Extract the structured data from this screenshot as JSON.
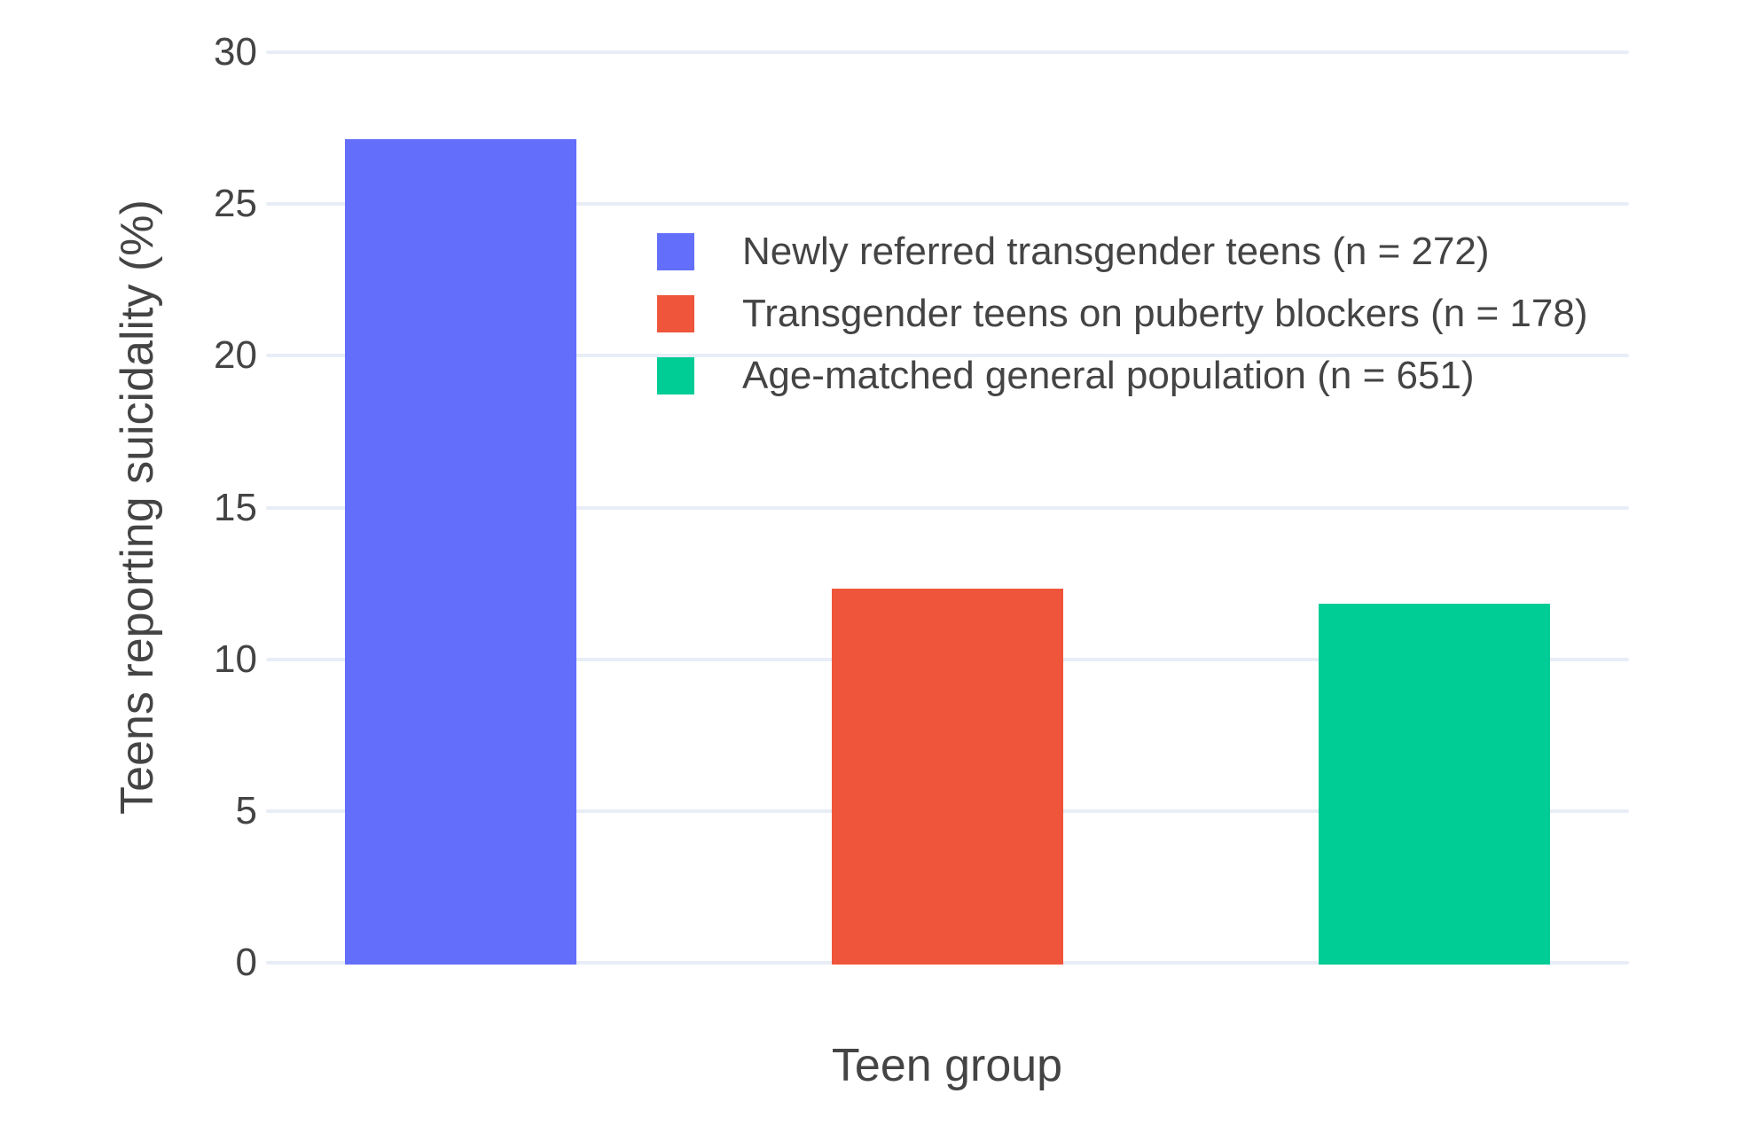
{
  "chart_data": {
    "type": "bar",
    "categories": [
      "Newly referred transgender teens (n = 272)",
      "Transgender teens on puberty blockers (n = 178)",
      "Age-matched general population (n = 651)"
    ],
    "values": [
      27.2,
      12.4,
      11.9
    ],
    "colors": [
      "#636EFA",
      "#EF553B",
      "#00CC96"
    ],
    "title": "",
    "xlabel": "Teen group",
    "ylabel": "Teens reporting suicidality (%)",
    "ylim": [
      0,
      30
    ],
    "yticks": [
      0,
      5,
      10,
      15,
      20,
      25,
      30
    ],
    "x_tick_labels": [],
    "grid": true,
    "legend_position": "inside plot, upper area right of first bar",
    "legend": [
      "Newly referred transgender teens (n = 272)",
      "Transgender teens on puberty blockers (n = 178)",
      "Age-matched general population (n = 651)"
    ]
  },
  "colors": {
    "grid": "#E8EDF6",
    "text": "#444444",
    "background": "#FFFFFF"
  }
}
